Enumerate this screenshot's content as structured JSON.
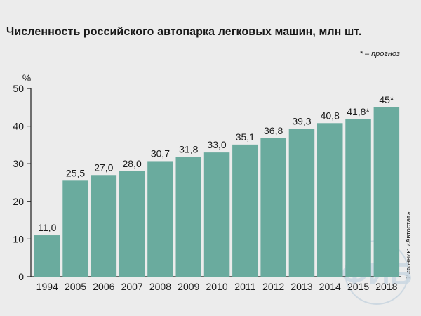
{
  "header": {
    "title": "Численность российского автопарка легковых машин, млн шт.",
    "note": "* – прогноз"
  },
  "source_label": "Источник: «Автостат»",
  "logo": {
    "text": "ФИБ"
  },
  "colors": {
    "bar": "#6aab9e",
    "background": "#ececec",
    "axis": "#1a1a1a"
  },
  "chart_data": {
    "type": "bar",
    "title": "Численность российского автопарка легковых машин, млн шт.",
    "ylabel": "%",
    "xlabel": "",
    "categories": [
      "1994",
      "2005",
      "2006",
      "2007",
      "2008",
      "2009",
      "2010",
      "2011",
      "2012",
      "2013",
      "2014",
      "2015",
      "2018"
    ],
    "values": [
      11.0,
      25.5,
      27.0,
      28.0,
      30.7,
      31.8,
      33.0,
      35.1,
      36.8,
      39.3,
      40.8,
      41.8,
      45
    ],
    "value_labels": [
      "11,0",
      "25,5",
      "27,0",
      "28,0",
      "30,7",
      "31,8",
      "33,0",
      "35,1",
      "36,8",
      "39,3",
      "40,8",
      "41,8*",
      "45*"
    ],
    "yticks": [
      0,
      10,
      20,
      30,
      40,
      50
    ],
    "ylim": [
      0,
      50
    ],
    "grid": false,
    "legend": "none"
  }
}
